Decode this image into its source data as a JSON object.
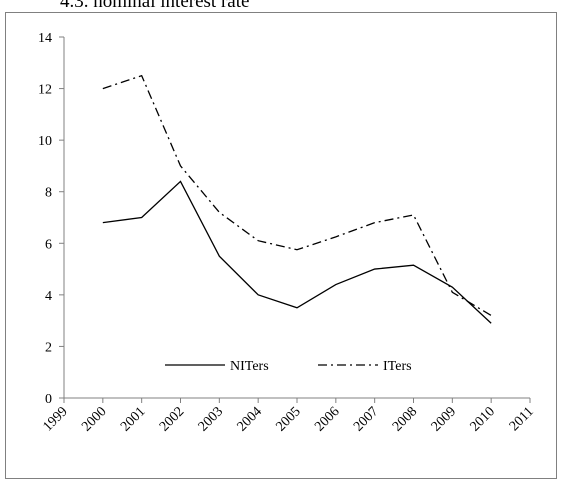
{
  "chart_data": {
    "type": "line",
    "title": "4.3. nominal interest rate",
    "x": [
      2000,
      2001,
      2002,
      2003,
      2004,
      2005,
      2006,
      2007,
      2008,
      2009,
      2010
    ],
    "series": [
      {
        "name": "NITers",
        "color": "#000000",
        "linestyle": "solid",
        "values": [
          6.8,
          7.0,
          8.4,
          5.5,
          4.0,
          3.5,
          4.4,
          5.0,
          5.15,
          4.3,
          2.9
        ]
      },
      {
        "name": "ITers",
        "color": "#000000",
        "linestyle": "dashdot",
        "values": [
          12.0,
          12.5,
          9.0,
          7.2,
          6.1,
          5.75,
          6.25,
          6.8,
          7.1,
          4.1,
          3.2
        ]
      }
    ],
    "xlim": [
      1999,
      2011
    ],
    "xticks": [
      1999,
      2000,
      2001,
      2002,
      2003,
      2004,
      2005,
      2006,
      2007,
      2008,
      2009,
      2010,
      2011
    ],
    "ylim": [
      0,
      14
    ],
    "yticks": [
      0,
      2,
      4,
      6,
      8,
      10,
      12,
      14
    ],
    "grid": false,
    "legend": "bottom"
  }
}
